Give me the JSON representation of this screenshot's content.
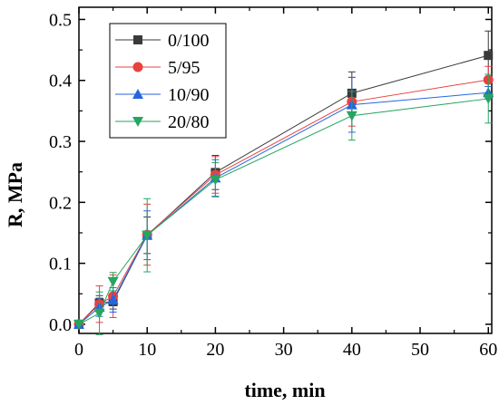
{
  "chart_data": {
    "type": "line",
    "xlabel": "time, min",
    "ylabel": "R, MPa",
    "xlim": [
      0,
      60.5
    ],
    "ylim": [
      -0.015,
      0.52
    ],
    "xticks": [
      0,
      10,
      20,
      30,
      40,
      50,
      60
    ],
    "yticks": [
      0.0,
      0.1,
      0.2,
      0.3,
      0.4,
      0.5
    ],
    "xtick_labels": [
      "0",
      "10",
      "20",
      "30",
      "40",
      "50",
      "60"
    ],
    "ytick_labels": [
      "0.0",
      "0.1",
      "0.2",
      "0.3",
      "0.4",
      "0.5"
    ],
    "grid": false,
    "legend_position": "top-left",
    "x": [
      0,
      3,
      5,
      10,
      20,
      40,
      60
    ],
    "series": [
      {
        "name": "0/100",
        "color": "#3a3a3a",
        "marker": "square",
        "values": [
          0.0,
          0.035,
          0.037,
          0.146,
          0.249,
          0.379,
          0.441
        ],
        "errors": [
          0.0,
          0.012,
          0.012,
          0.03,
          0.028,
          0.035,
          0.04
        ]
      },
      {
        "name": "5/95",
        "color": "#e8423f",
        "marker": "circle",
        "values": [
          0.0,
          0.033,
          0.046,
          0.147,
          0.245,
          0.365,
          0.401
        ],
        "errors": [
          0.0,
          0.03,
          0.035,
          0.05,
          0.03,
          0.04,
          0.022
        ]
      },
      {
        "name": "10/90",
        "color": "#2466e0",
        "marker": "triangle-up",
        "values": [
          0.0,
          0.028,
          0.04,
          0.146,
          0.24,
          0.36,
          0.38
        ],
        "errors": [
          0.0,
          0.015,
          0.02,
          0.04,
          0.03,
          0.045,
          0.01
        ]
      },
      {
        "name": "20/80",
        "color": "#25a55f",
        "marker": "triangle-down",
        "values": [
          0.0,
          0.018,
          0.07,
          0.146,
          0.237,
          0.342,
          0.37
        ],
        "errors": [
          0.0,
          0.035,
          0.015,
          0.06,
          0.028,
          0.04,
          0.04
        ]
      }
    ]
  }
}
